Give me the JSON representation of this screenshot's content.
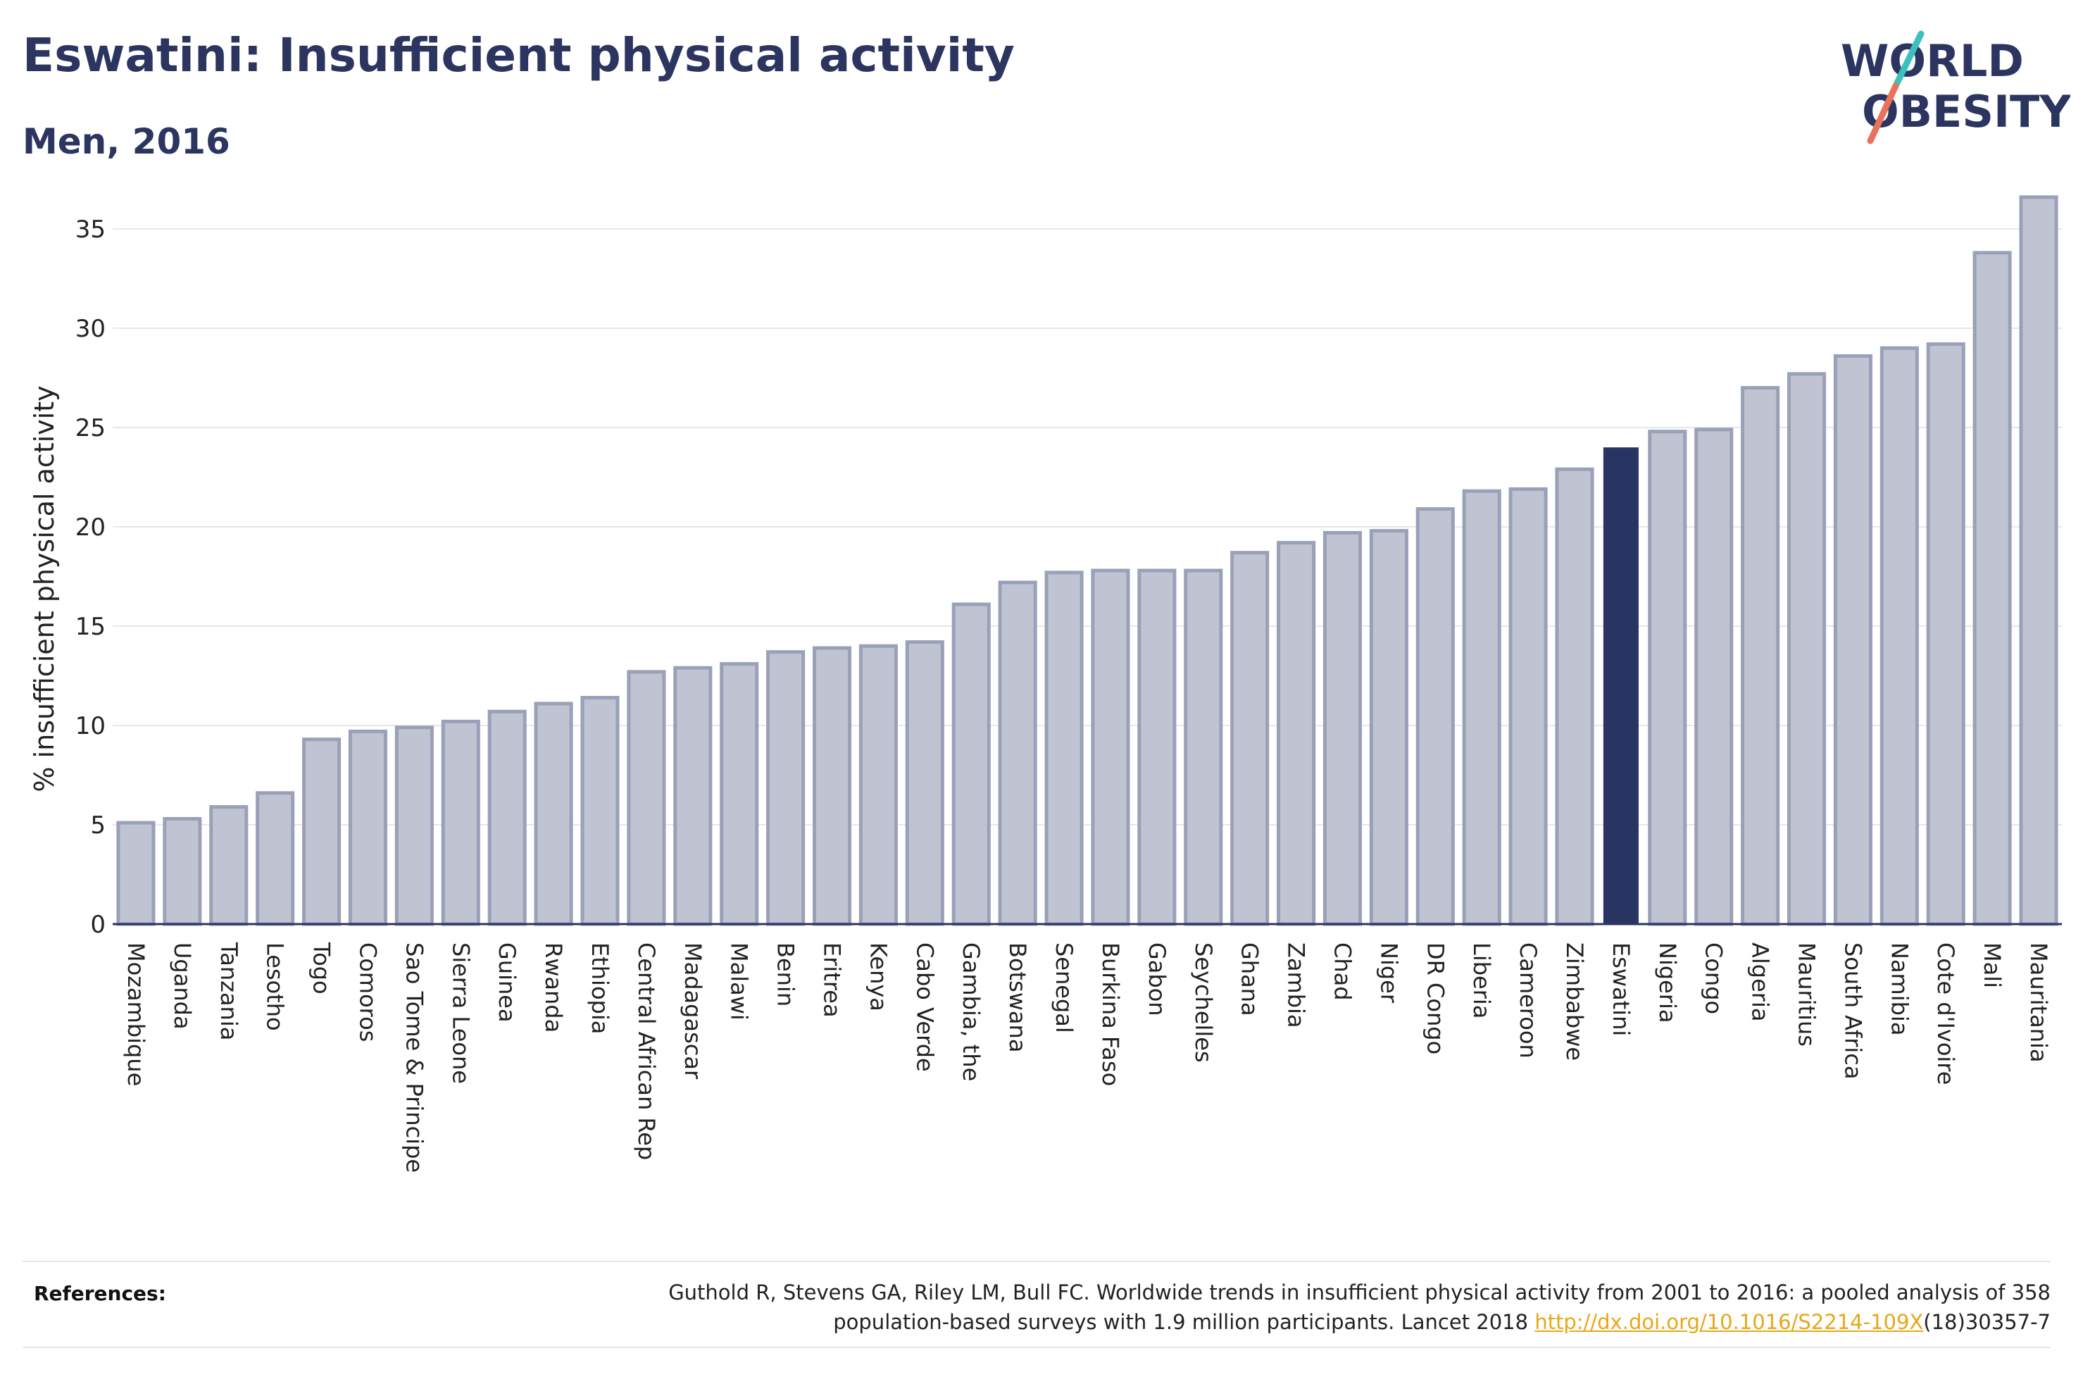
{
  "header": {
    "title": "Eswatini: Insufficient physical activity",
    "subtitle": "Men, 2016"
  },
  "logo": {
    "line1": "WORLD",
    "line2": "OBESITY",
    "colors": {
      "text": "#2b3560",
      "slash_top": "#3cbfbf",
      "slash_bottom": "#e8735a"
    }
  },
  "colors": {
    "bar": "#c0c4d2",
    "bar_edge": "#9aa0b8",
    "highlight": "#283562",
    "grid": "#e8e8ec",
    "axis": "#2b3560"
  },
  "chart_data": {
    "type": "bar",
    "title": "Eswatini: Insufficient physical activity",
    "subtitle": "Men, 2016",
    "xlabel": "",
    "ylabel": "% insufficient physical activity",
    "ylim": [
      0,
      37
    ],
    "yticks": [
      0,
      5,
      10,
      15,
      20,
      25,
      30,
      35
    ],
    "grid": true,
    "highlight": "Eswatini",
    "categories": [
      "Mozambique",
      "Uganda",
      "Tanzania",
      "Lesotho",
      "Togo",
      "Comoros",
      "Sao Tome & Principe",
      "Sierra Leone",
      "Guinea",
      "Rwanda",
      "Ethiopia",
      "Central African Rep",
      "Madagascar",
      "Malawi",
      "Benin",
      "Eritrea",
      "Kenya",
      "Cabo Verde",
      "Gambia, the",
      "Botswana",
      "Senegal",
      "Burkina Faso",
      "Gabon",
      "Seychelles",
      "Ghana",
      "Zambia",
      "Chad",
      "Niger",
      "DR Congo",
      "Liberia",
      "Cameroon",
      "Zimbabwe",
      "Eswatini",
      "Nigeria",
      "Congo",
      "Algeria",
      "Mauritius",
      "South Africa",
      "Namibia",
      "Cote d'Ivoire",
      "Mali",
      "Mauritania"
    ],
    "values": [
      5.1,
      5.3,
      5.9,
      6.6,
      9.3,
      9.7,
      9.9,
      10.2,
      10.7,
      11.1,
      11.4,
      12.7,
      12.9,
      13.1,
      13.7,
      13.9,
      14.0,
      14.2,
      16.1,
      17.2,
      17.7,
      17.8,
      17.8,
      17.8,
      18.7,
      19.2,
      19.7,
      19.8,
      20.9,
      21.8,
      21.9,
      22.9,
      24.0,
      24.8,
      24.9,
      27.0,
      27.7,
      28.6,
      29.0,
      29.2,
      33.8,
      36.6
    ]
  },
  "references": {
    "label": "References:",
    "line1": "Guthold R, Stevens GA, Riley LM, Bull FC. Worldwide trends in insufficient physical activity from 2001 to 2016: a pooled analysis of 358",
    "line2_prefix": "population-based surveys with 1.9 million participants. Lancet 2018 ",
    "link": "http://dx.doi.org/10.1016/S2214-109X",
    "line2_suffix": "(18)30357-7"
  }
}
